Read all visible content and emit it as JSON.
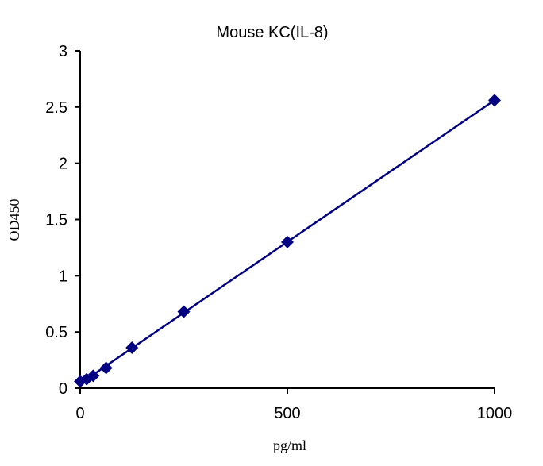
{
  "chart_data": {
    "type": "scatter",
    "title": "Mouse  KC(IL-8)",
    "xlabel": "pg/ml",
    "ylabel": "OD450",
    "xlim": [
      0,
      1000
    ],
    "ylim": [
      0,
      3
    ],
    "xticks": [
      "0",
      "500",
      "1000"
    ],
    "yticks": [
      "0",
      "0.5",
      "1",
      "1.5",
      "2",
      "2.5",
      "3"
    ],
    "grid": false,
    "trendline": "linear",
    "marker": "diamond",
    "color": "#000080",
    "series": [
      {
        "x": [
          0,
          15.6,
          31.25,
          62.5,
          125,
          250,
          500,
          1000
        ],
        "y": [
          0.06,
          0.08,
          0.11,
          0.18,
          0.36,
          0.68,
          1.3,
          2.56
        ]
      }
    ]
  }
}
